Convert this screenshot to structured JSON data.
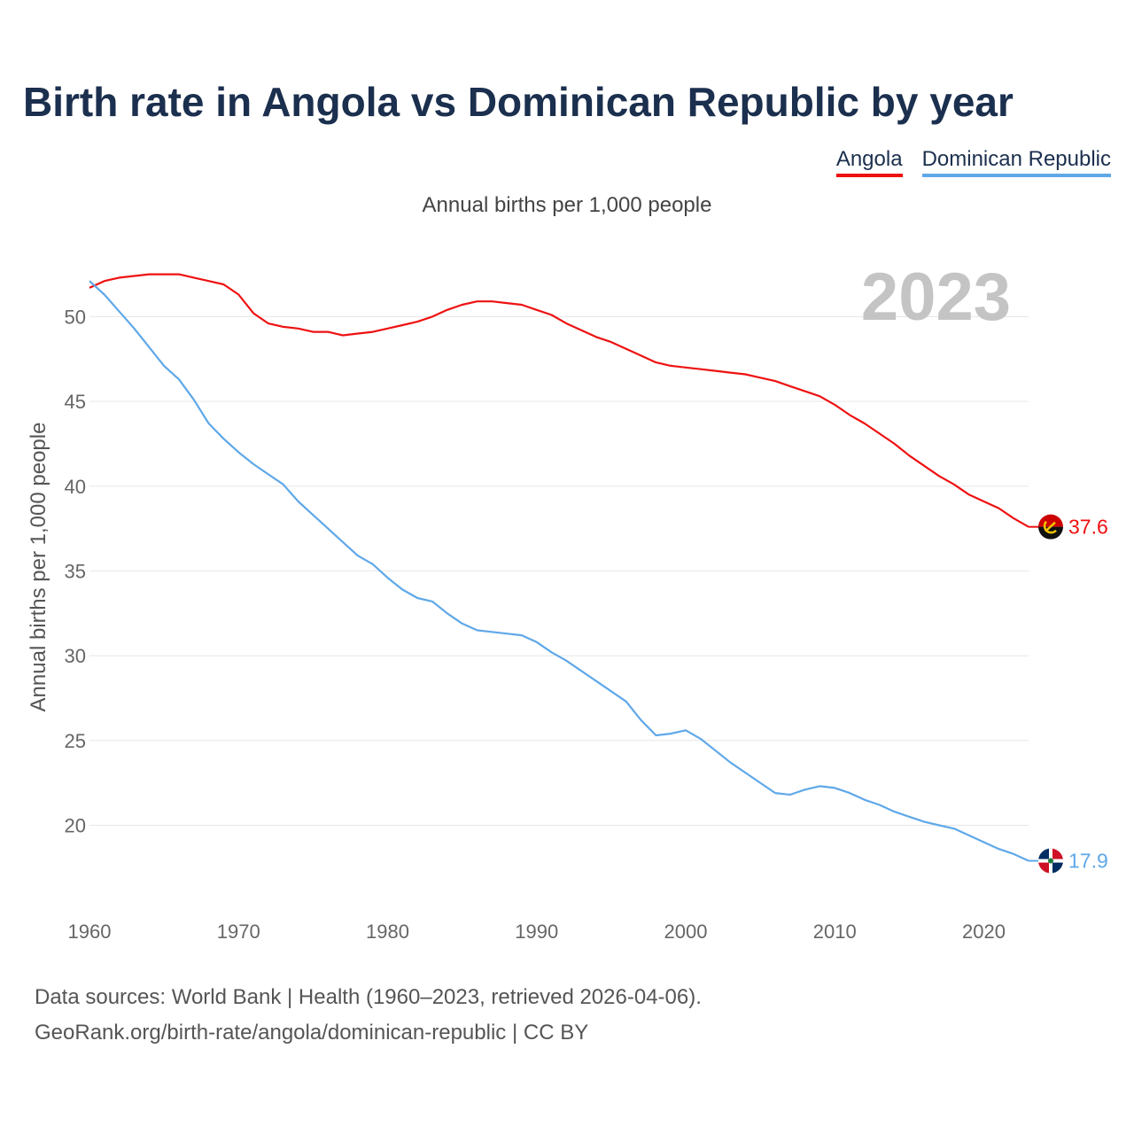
{
  "title": "Birth rate in Angola vs Dominican Republic by year",
  "legend": [
    {
      "label": "Angola",
      "color": "#ee1111"
    },
    {
      "label": "Dominican Republic",
      "color": "#5fa8e8"
    }
  ],
  "source": {
    "line1": "Data sources: World Bank | Health (1960–2023, retrieved 2026-04-06).",
    "line2": "GeoRank.org/birth-rate/angola/dominican-republic | CC BY"
  },
  "chart_data": {
    "type": "line",
    "title": "Birth rate in Angola vs Dominican Republic by year",
    "subtitle": "Annual births per 1,000 people",
    "xlabel": "",
    "ylabel": "Annual births per 1,000 people",
    "year_label": "2023",
    "xlim": [
      1960,
      2023
    ],
    "ylim": [
      16,
      53
    ],
    "xticks": [
      1960,
      1970,
      1980,
      1990,
      2000,
      2010,
      2020
    ],
    "yticks": [
      20,
      25,
      30,
      35,
      40,
      45,
      50
    ],
    "grid": true,
    "legend_position": "top-right",
    "x": [
      1960,
      1961,
      1962,
      1963,
      1964,
      1965,
      1966,
      1967,
      1968,
      1969,
      1970,
      1971,
      1972,
      1973,
      1974,
      1975,
      1976,
      1977,
      1978,
      1979,
      1980,
      1981,
      1982,
      1983,
      1984,
      1985,
      1986,
      1987,
      1988,
      1989,
      1990,
      1991,
      1992,
      1993,
      1994,
      1995,
      1996,
      1997,
      1998,
      1999,
      2000,
      2001,
      2002,
      2003,
      2004,
      2005,
      2006,
      2007,
      2008,
      2009,
      2010,
      2011,
      2012,
      2013,
      2014,
      2015,
      2016,
      2017,
      2018,
      2019,
      2020,
      2021,
      2022,
      2023
    ],
    "series": [
      {
        "name": "Angola",
        "color": "#ee1111",
        "end_label": "37.6",
        "values": [
          51.7,
          52.1,
          52.3,
          52.4,
          52.5,
          52.5,
          52.5,
          52.3,
          52.1,
          51.9,
          51.3,
          50.2,
          49.6,
          49.4,
          49.3,
          49.1,
          49.1,
          48.9,
          49.0,
          49.1,
          49.3,
          49.5,
          49.7,
          50.0,
          50.4,
          50.7,
          50.9,
          50.9,
          50.8,
          50.7,
          50.4,
          50.1,
          49.6,
          49.2,
          48.8,
          48.5,
          48.1,
          47.7,
          47.3,
          47.1,
          47.0,
          46.9,
          46.8,
          46.7,
          46.6,
          46.4,
          46.2,
          45.9,
          45.6,
          45.3,
          44.8,
          44.2,
          43.7,
          43.1,
          42.5,
          41.8,
          41.2,
          40.6,
          40.1,
          39.5,
          39.1,
          38.7,
          38.1,
          37.6
        ]
      },
      {
        "name": "Dominican Republic",
        "color": "#5fa8e8",
        "end_label": "17.9",
        "values": [
          52.1,
          51.3,
          50.3,
          49.3,
          48.2,
          47.1,
          46.3,
          45.1,
          43.7,
          42.8,
          42.0,
          41.3,
          40.7,
          40.1,
          39.1,
          38.3,
          37.5,
          36.7,
          35.9,
          35.4,
          34.6,
          33.9,
          33.4,
          33.2,
          32.5,
          31.9,
          31.5,
          31.4,
          31.3,
          31.2,
          30.8,
          30.2,
          29.7,
          29.1,
          28.5,
          27.9,
          27.3,
          26.2,
          25.3,
          25.4,
          25.6,
          25.1,
          24.4,
          23.7,
          23.1,
          22.5,
          21.9,
          21.8,
          22.1,
          22.3,
          22.2,
          21.9,
          21.5,
          21.2,
          20.8,
          20.5,
          20.2,
          20.0,
          19.8,
          19.4,
          19.0,
          18.6,
          18.3,
          17.9
        ]
      }
    ]
  }
}
